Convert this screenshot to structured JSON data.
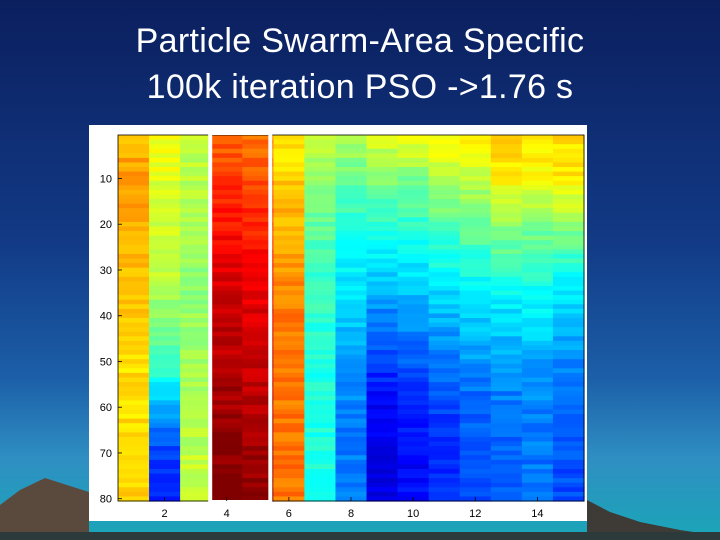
{
  "slide": {
    "title_line1": "Particle Swarm-Area Specific",
    "title_line2": "100k iteration PSO ->1.76 s"
  },
  "chart_data": {
    "type": "heatmap",
    "colormap": "jet",
    "rows": 80,
    "columns": 15,
    "x_ticks": [
      "2",
      "4",
      "6",
      "8",
      "10",
      "12",
      "14"
    ],
    "y_ticks": [
      "10",
      "20",
      "30",
      "40",
      "50",
      "60",
      "70",
      "80"
    ],
    "highlighted_column": 4,
    "highlight_color": "#ffffff",
    "profiles": {
      "row_samples": [
        1,
        10,
        20,
        30,
        40,
        50,
        60,
        70,
        80
      ],
      "columns": [
        [
          0.7,
          0.72,
          0.7,
          0.68,
          0.68,
          0.66,
          0.66,
          0.66,
          0.68
        ],
        [
          0.62,
          0.6,
          0.58,
          0.56,
          0.52,
          0.45,
          0.3,
          0.18,
          0.16
        ],
        [
          0.58,
          0.55,
          0.54,
          0.52,
          0.52,
          0.53,
          0.55,
          0.56,
          0.58
        ],
        [
          0.78,
          0.82,
          0.86,
          0.9,
          0.93,
          0.95,
          0.97,
          0.99,
          1.0
        ],
        [
          0.76,
          0.8,
          0.84,
          0.88,
          0.91,
          0.93,
          0.95,
          0.97,
          0.98
        ],
        [
          0.64,
          0.67,
          0.7,
          0.73,
          0.75,
          0.76,
          0.76,
          0.76,
          0.76
        ],
        [
          0.56,
          0.52,
          0.47,
          0.44,
          0.42,
          0.41,
          0.4,
          0.4,
          0.4
        ],
        [
          0.55,
          0.48,
          0.42,
          0.36,
          0.32,
          0.28,
          0.25,
          0.25,
          0.25
        ],
        [
          0.6,
          0.5,
          0.42,
          0.34,
          0.25,
          0.18,
          0.12,
          0.1,
          0.1
        ],
        [
          0.62,
          0.5,
          0.42,
          0.35,
          0.28,
          0.21,
          0.15,
          0.13,
          0.13
        ],
        [
          0.64,
          0.55,
          0.46,
          0.38,
          0.3,
          0.24,
          0.19,
          0.16,
          0.16
        ],
        [
          0.63,
          0.56,
          0.48,
          0.4,
          0.33,
          0.27,
          0.22,
          0.2,
          0.2
        ],
        [
          0.67,
          0.64,
          0.52,
          0.42,
          0.34,
          0.28,
          0.24,
          0.22,
          0.22
        ],
        [
          0.66,
          0.62,
          0.5,
          0.42,
          0.35,
          0.29,
          0.25,
          0.24,
          0.24
        ],
        [
          0.66,
          0.64,
          0.52,
          0.4,
          0.32,
          0.26,
          0.22,
          0.2,
          0.2
        ]
      ]
    }
  }
}
